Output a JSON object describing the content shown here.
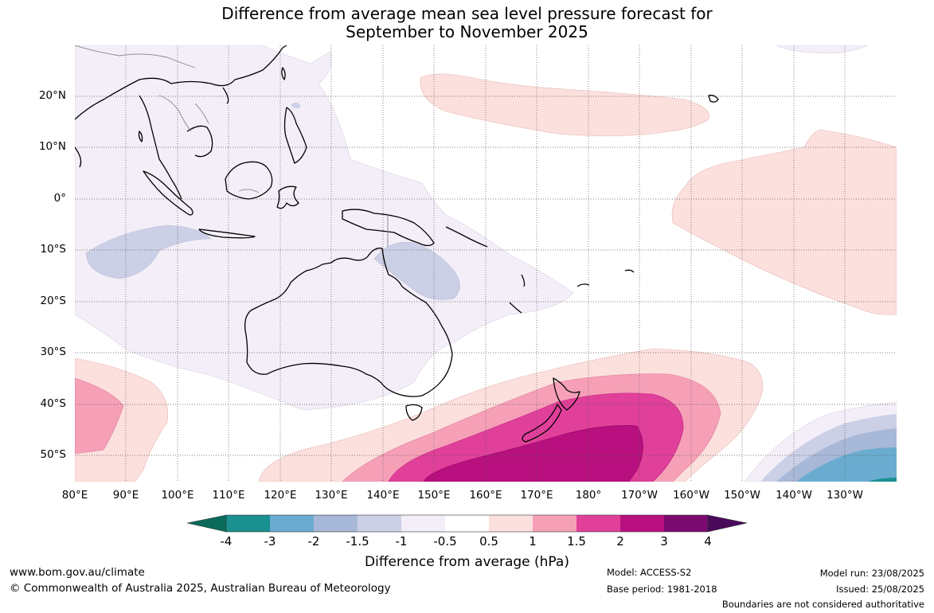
{
  "map": {
    "title_line1": "Difference from average mean sea level pressure forecast for",
    "title_line2": "September to November 2025",
    "lat_labels": [
      "20°N",
      "10°N",
      "0°",
      "10°S",
      "20°S",
      "30°S",
      "40°S",
      "50°S"
    ],
    "lon_labels": [
      "80°E",
      "90°E",
      "100°E",
      "110°E",
      "120°E",
      "130°E",
      "140°E",
      "150°E",
      "160°E",
      "170°E",
      "180°",
      "170°W",
      "160°W",
      "150°W",
      "140°W",
      "130°W"
    ],
    "colors": {
      "neg4": "#0a6a5a",
      "neg3": "#1a9090",
      "neg2": "#6aacd0",
      "neg15": "#a8b8d8",
      "neg1": "#ccd0e6",
      "neg05": "#f3eef7",
      "zero": "#ffffff",
      "pos05": "#fbe0dd",
      "pos1": "#f6a0b8",
      "pos15": "#e0409a",
      "pos2": "#b8107e",
      "pos3": "#7a0a70",
      "pos4": "#4a0a5a"
    }
  },
  "legend": {
    "ticks": [
      "-4",
      "-3",
      "-2",
      "-1.5",
      "-1",
      "-0.5",
      "0.5",
      "1",
      "1.5",
      "2",
      "3",
      "4"
    ],
    "label": "Difference from average (hPa)"
  },
  "footer": {
    "website": "www.bom.gov.au/climate",
    "copyright": "© Commonwealth of Australia 2025, Australian Bureau of Meteorology",
    "model": "Model: ACCESS-S2",
    "base_period": "Base period: 1981-2018",
    "model_run": "Model run: 23/08/2025",
    "issued": "Issued: 25/08/2025",
    "disclaimer": "Boundaries are not considered authoritative"
  }
}
